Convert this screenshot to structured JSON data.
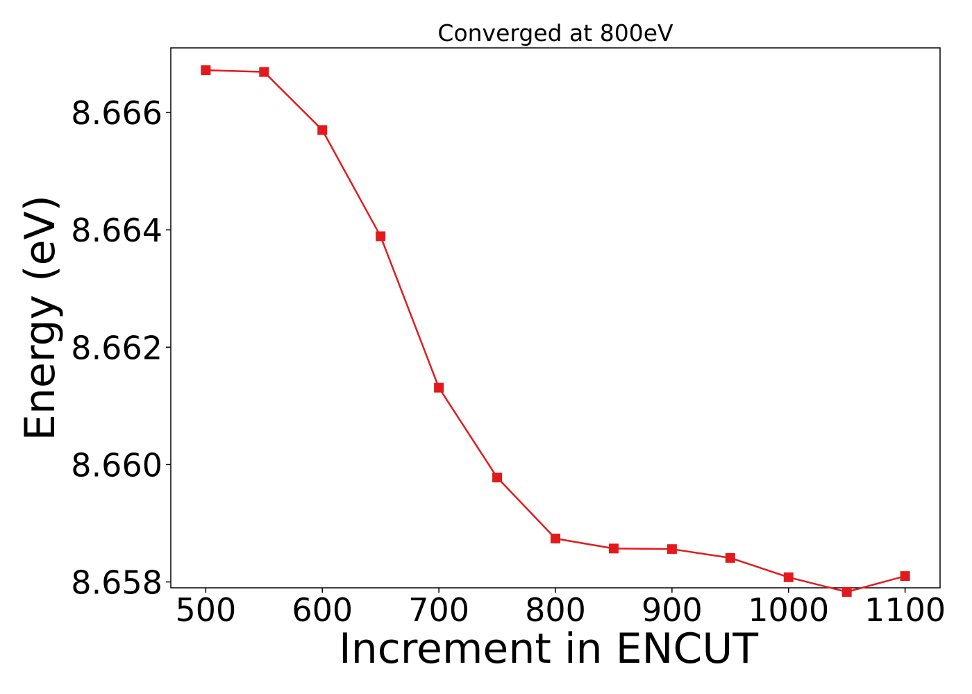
{
  "chart_data": {
    "type": "line",
    "title": "Converged at 800eV",
    "xlabel": "Increment in ENCUT",
    "ylabel": "Energy (eV)",
    "xlim": [
      470,
      1130
    ],
    "ylim": [
      8.6579,
      8.6671
    ],
    "xticks": [
      500,
      600,
      700,
      800,
      900,
      1000,
      1100
    ],
    "xtick_labels": [
      "500",
      "600",
      "700",
      "800",
      "900",
      "1000",
      "1100"
    ],
    "yticks": [
      8.658,
      8.66,
      8.662,
      8.664,
      8.666
    ],
    "ytick_labels": [
      "8.658",
      "8.660",
      "8.662",
      "8.664",
      "8.666"
    ],
    "grid": false,
    "color": "#e31a1c",
    "marker": "square",
    "series": [
      {
        "x": [
          500,
          550,
          600,
          650,
          700,
          750,
          800,
          850,
          900,
          950,
          1000,
          1050,
          1100
        ],
        "values": [
          8.66672,
          8.66669,
          8.6657,
          8.66389,
          8.66131,
          8.65978,
          8.65874,
          8.65857,
          8.65856,
          8.65841,
          8.65808,
          8.65783,
          8.6581
        ]
      }
    ]
  }
}
